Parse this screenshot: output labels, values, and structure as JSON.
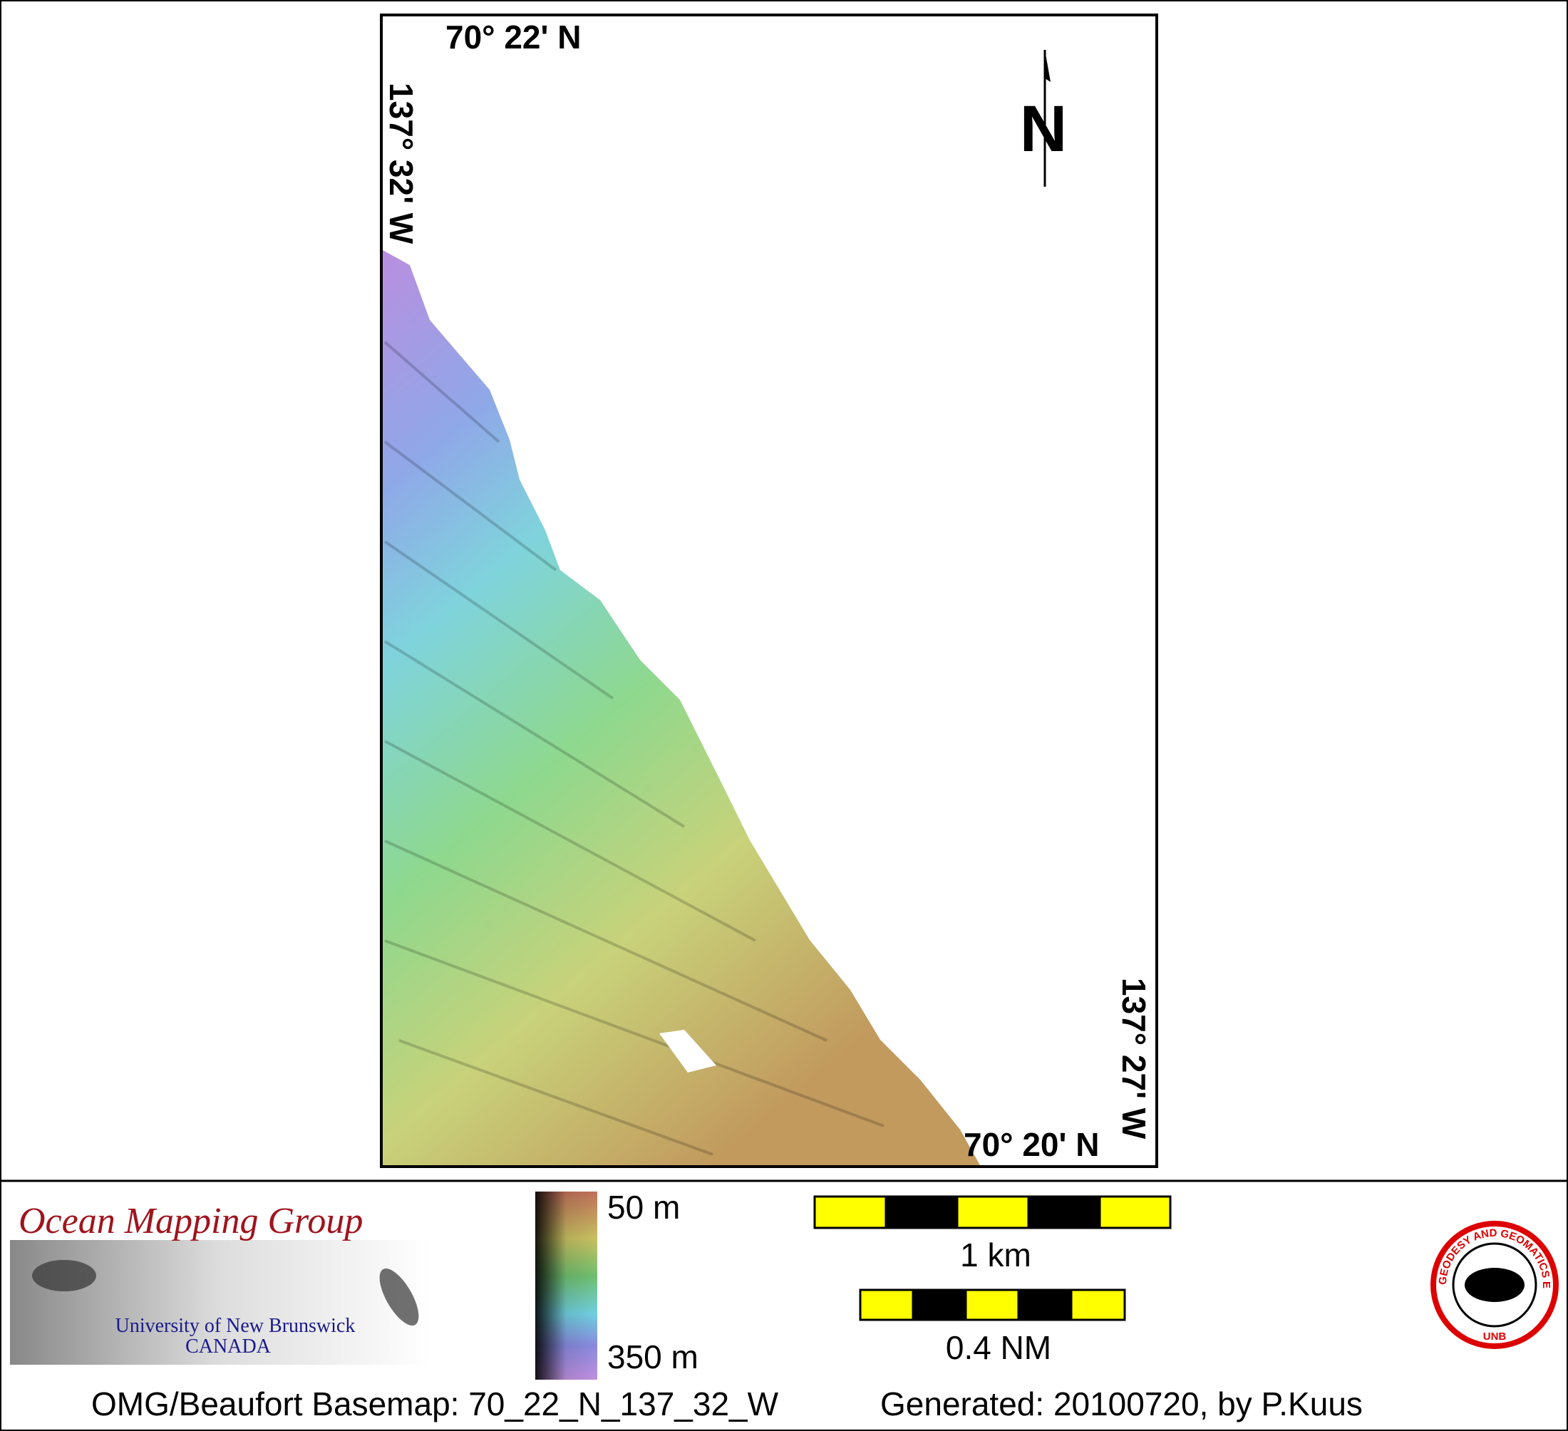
{
  "map": {
    "top_latitude": "70° 22' N",
    "bottom_latitude": "70° 20' N",
    "left_longitude": "137° 32' W",
    "right_longitude": "137° 27' W",
    "north_arrow": "N"
  },
  "legend": {
    "depth_min": "50 m",
    "depth_max": "350 m",
    "scale_km": "1 km",
    "scale_nm": "0.4 NM"
  },
  "logo": {
    "title": "Ocean Mapping Group",
    "university": "University of New Brunswick",
    "country": "CANADA",
    "badge_ring": "GEODESY AND GEOMATICS ENGINEERING",
    "badge_bottom": "UNB"
  },
  "footer": {
    "basemap": "OMG/Beaufort Basemap: 70_22_N_137_32_W",
    "generated": "Generated: 20100720, by P.Kuus"
  }
}
